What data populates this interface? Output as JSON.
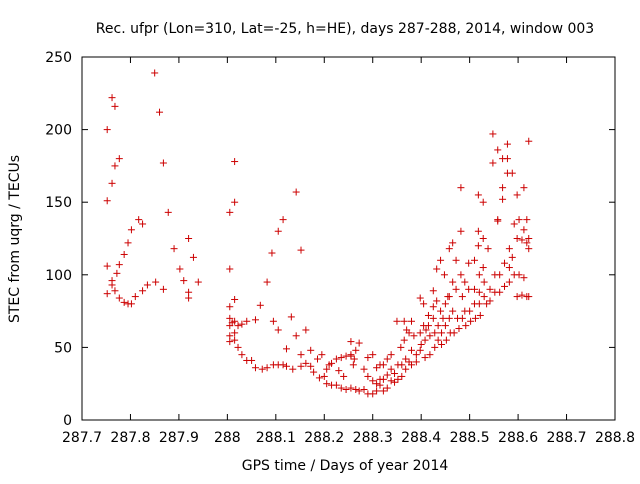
{
  "chart_data": {
    "type": "scatter",
    "title": "Rec. ufpr (Lon=310, Lat=-25, h=HE), days 287-288, 2014, window 003",
    "xlabel": "GPS time / Days of year 2014",
    "ylabel": "STEC from uqrg / TECUs",
    "xlim": [
      287.7,
      288.8
    ],
    "ylim": [
      0,
      250
    ],
    "xticks": [
      287.7,
      287.8,
      287.9,
      288.0,
      288.1,
      288.2,
      288.3,
      288.4,
      288.5,
      288.6,
      288.7,
      288.8
    ],
    "xtick_labels": [
      "287.7",
      "287.8",
      "287.9",
      "288",
      "288.1",
      "288.2",
      "288.3",
      "288.4",
      "288.5",
      "288.6",
      "288.7",
      "288.8"
    ],
    "yticks": [
      0,
      50,
      100,
      150,
      200,
      250
    ],
    "ytick_labels": [
      "0",
      "50",
      "100",
      "150",
      "200",
      "250"
    ],
    "grid": false,
    "legend": "none",
    "marker": "+",
    "color": "#cc0000",
    "series": [
      {
        "points": [
          [
            287.752,
            200
          ],
          [
            287.752,
            151
          ],
          [
            287.752,
            106
          ],
          [
            287.752,
            87
          ],
          [
            287.762,
            222
          ],
          [
            287.762,
            163
          ],
          [
            287.762,
            96
          ],
          [
            287.762,
            93
          ],
          [
            287.768,
            216
          ],
          [
            287.768,
            175
          ],
          [
            287.768,
            89
          ],
          [
            287.772,
            101
          ],
          [
            287.777,
            180
          ],
          [
            287.777,
            107
          ],
          [
            287.777,
            84
          ],
          [
            287.787,
            114
          ],
          [
            287.787,
            81
          ],
          [
            287.795,
            122
          ],
          [
            287.795,
            80
          ],
          [
            287.802,
            131
          ],
          [
            287.802,
            80
          ],
          [
            287.81,
            85
          ],
          [
            287.817,
            138
          ],
          [
            287.825,
            135
          ],
          [
            287.825,
            89
          ],
          [
            287.835,
            93
          ],
          [
            287.85,
            239
          ],
          [
            287.852,
            95
          ],
          [
            287.86,
            212
          ],
          [
            287.868,
            177
          ],
          [
            287.868,
            90
          ],
          [
            287.878,
            143
          ],
          [
            287.89,
            118
          ],
          [
            287.902,
            104
          ],
          [
            287.91,
            96
          ],
          [
            287.92,
            125
          ],
          [
            287.92,
            88
          ],
          [
            287.92,
            84
          ],
          [
            287.93,
            112
          ],
          [
            287.94,
            95
          ],
          [
            288.005,
            143
          ],
          [
            288.005,
            104
          ],
          [
            288.005,
            78
          ],
          [
            288.005,
            70
          ],
          [
            288.005,
            65
          ],
          [
            288.005,
            58
          ],
          [
            288.005,
            54
          ],
          [
            288.01,
            67
          ],
          [
            288.015,
            178
          ],
          [
            288.015,
            150
          ],
          [
            288.015,
            83
          ],
          [
            288.015,
            68
          ],
          [
            288.015,
            60
          ],
          [
            288.015,
            55
          ],
          [
            288.022,
            65
          ],
          [
            288.022,
            50
          ],
          [
            288.03,
            66
          ],
          [
            288.03,
            45
          ],
          [
            288.04,
            68
          ],
          [
            288.04,
            41
          ],
          [
            288.05,
            41
          ],
          [
            288.058,
            69
          ],
          [
            288.058,
            36
          ],
          [
            288.068,
            79
          ],
          [
            288.072,
            35
          ],
          [
            288.082,
            95
          ],
          [
            288.082,
            36
          ],
          [
            288.092,
            115
          ],
          [
            288.095,
            68
          ],
          [
            288.095,
            38
          ],
          [
            288.105,
            130
          ],
          [
            288.105,
            62
          ],
          [
            288.105,
            38
          ],
          [
            288.115,
            138
          ],
          [
            288.115,
            38
          ],
          [
            288.122,
            49
          ],
          [
            288.122,
            37
          ],
          [
            288.132,
            71
          ],
          [
            288.135,
            35
          ],
          [
            288.142,
            58
          ],
          [
            288.142,
            157
          ],
          [
            288.152,
            117
          ],
          [
            288.152,
            45
          ],
          [
            288.152,
            37
          ],
          [
            288.162,
            62
          ],
          [
            288.162,
            39
          ],
          [
            288.172,
            48
          ],
          [
            288.172,
            37
          ],
          [
            288.178,
            33
          ],
          [
            288.186,
            42
          ],
          [
            288.19,
            29
          ],
          [
            288.195,
            45
          ],
          [
            288.205,
            35
          ],
          [
            288.205,
            25
          ],
          [
            288.215,
            39
          ],
          [
            288.215,
            24
          ],
          [
            288.225,
            42
          ],
          [
            288.225,
            24
          ],
          [
            288.235,
            43
          ],
          [
            288.235,
            22
          ],
          [
            288.245,
            44
          ],
          [
            288.245,
            21
          ],
          [
            288.255,
            54
          ],
          [
            288.255,
            45
          ],
          [
            288.255,
            44
          ],
          [
            288.255,
            22
          ],
          [
            288.262,
            42
          ],
          [
            288.265,
            48
          ],
          [
            288.265,
            21
          ],
          [
            288.272,
            53
          ],
          [
            288.272,
            20
          ],
          [
            288.282,
            35
          ],
          [
            288.282,
            21
          ],
          [
            288.29,
            43
          ],
          [
            288.29,
            30
          ],
          [
            288.29,
            18
          ],
          [
            288.3,
            45
          ],
          [
            288.3,
            27
          ],
          [
            288.3,
            18
          ],
          [
            288.308,
            36
          ],
          [
            288.308,
            25
          ],
          [
            288.308,
            20
          ],
          [
            288.315,
            38
          ],
          [
            288.315,
            28
          ],
          [
            288.315,
            24
          ],
          [
            288.322,
            38
          ],
          [
            288.322,
            28
          ],
          [
            288.322,
            20
          ],
          [
            288.33,
            42
          ],
          [
            288.33,
            31
          ],
          [
            288.33,
            22
          ],
          [
            288.338,
            45
          ],
          [
            288.338,
            35
          ],
          [
            288.338,
            27
          ],
          [
            288.345,
            32
          ],
          [
            288.345,
            26
          ],
          [
            288.35,
            68
          ],
          [
            288.352,
            38
          ],
          [
            288.352,
            28
          ],
          [
            288.358,
            50
          ],
          [
            288.36,
            38
          ],
          [
            288.36,
            30
          ],
          [
            288.365,
            55
          ],
          [
            288.365,
            68
          ],
          [
            288.368,
            42
          ],
          [
            288.368,
            35
          ],
          [
            288.375,
            60
          ],
          [
            288.375,
            40
          ],
          [
            288.38,
            48
          ],
          [
            288.38,
            38
          ],
          [
            288.385,
            58
          ],
          [
            288.39,
            45
          ],
          [
            288.39,
            40
          ],
          [
            288.398,
            84
          ],
          [
            288.398,
            60
          ],
          [
            288.398,
            48
          ],
          [
            288.405,
            80
          ],
          [
            288.405,
            65
          ],
          [
            288.408,
            55
          ],
          [
            288.408,
            43
          ],
          [
            288.415,
            72
          ],
          [
            288.415,
            65
          ],
          [
            288.418,
            58
          ],
          [
            288.418,
            45
          ],
          [
            288.425,
            89
          ],
          [
            288.425,
            70
          ],
          [
            288.428,
            60
          ],
          [
            288.428,
            50
          ],
          [
            288.432,
            104
          ],
          [
            288.432,
            82
          ],
          [
            288.435,
            65
          ],
          [
            288.435,
            55
          ],
          [
            288.44,
            110
          ],
          [
            288.44,
            75
          ],
          [
            288.442,
            60
          ],
          [
            288.442,
            52
          ],
          [
            288.448,
            100
          ],
          [
            288.45,
            80
          ],
          [
            288.45,
            65
          ],
          [
            288.452,
            55
          ],
          [
            288.458,
            118
          ],
          [
            288.458,
            85
          ],
          [
            288.458,
            70
          ],
          [
            288.46,
            60
          ],
          [
            288.465,
            122
          ],
          [
            288.465,
            95
          ],
          [
            288.465,
            75
          ],
          [
            288.468,
            60
          ],
          [
            288.472,
            110
          ],
          [
            288.472,
            90
          ],
          [
            288.475,
            70
          ],
          [
            288.478,
            63
          ],
          [
            288.482,
            160
          ],
          [
            288.482,
            130
          ],
          [
            288.482,
            100
          ],
          [
            288.485,
            85
          ],
          [
            288.485,
            70
          ],
          [
            288.49,
            95
          ],
          [
            288.49,
            75
          ],
          [
            288.492,
            65
          ],
          [
            288.498,
            108
          ],
          [
            288.498,
            90
          ],
          [
            288.5,
            75
          ],
          [
            288.502,
            68
          ],
          [
            288.51,
            110
          ],
          [
            288.51,
            90
          ],
          [
            288.51,
            80
          ],
          [
            288.512,
            70
          ],
          [
            288.518,
            155
          ],
          [
            288.518,
            130
          ],
          [
            288.518,
            120
          ],
          [
            288.52,
            100
          ],
          [
            288.52,
            88
          ],
          [
            288.52,
            80
          ],
          [
            288.522,
            72
          ],
          [
            288.528,
            150
          ],
          [
            288.528,
            125
          ],
          [
            288.528,
            105
          ],
          [
            288.53,
            95
          ],
          [
            288.53,
            85
          ],
          [
            288.535,
            80
          ],
          [
            288.538,
            118
          ],
          [
            288.542,
            90
          ],
          [
            288.542,
            82
          ],
          [
            288.548,
            197
          ],
          [
            288.548,
            177
          ],
          [
            288.552,
            100
          ],
          [
            288.552,
            88
          ],
          [
            288.558,
            186
          ],
          [
            288.558,
            138
          ],
          [
            288.558,
            137
          ],
          [
            288.562,
            100
          ],
          [
            288.562,
            88
          ],
          [
            288.568,
            180
          ],
          [
            288.568,
            160
          ],
          [
            288.568,
            152
          ],
          [
            288.572,
            108
          ],
          [
            288.572,
            92
          ],
          [
            288.578,
            190
          ],
          [
            288.578,
            180
          ],
          [
            288.578,
            170
          ],
          [
            288.582,
            118
          ],
          [
            288.582,
            105
          ],
          [
            288.582,
            95
          ],
          [
            288.588,
            170
          ],
          [
            288.588,
            112
          ],
          [
            288.592,
            135
          ],
          [
            288.592,
            100
          ],
          [
            288.598,
            155
          ],
          [
            288.598,
            125
          ],
          [
            288.598,
            85
          ],
          [
            288.602,
            138
          ],
          [
            288.602,
            100
          ],
          [
            288.608,
            124
          ],
          [
            288.608,
            86
          ],
          [
            288.612,
            160
          ],
          [
            288.612,
            131
          ],
          [
            288.612,
            98
          ],
          [
            288.618,
            138
          ],
          [
            288.618,
            122
          ],
          [
            288.618,
            85
          ],
          [
            288.622,
            192
          ],
          [
            288.622,
            125
          ],
          [
            288.622,
            118
          ],
          [
            288.622,
            85
          ],
          [
            288.455,
            85
          ],
          [
            288.445,
            70
          ],
          [
            288.425,
            78
          ],
          [
            288.41,
            62
          ],
          [
            288.4,
            52
          ],
          [
            288.38,
            68
          ],
          [
            288.37,
            62
          ],
          [
            288.26,
            38
          ],
          [
            288.24,
            30
          ],
          [
            288.23,
            34
          ],
          [
            288.21,
            38
          ],
          [
            288.2,
            30
          ]
        ]
      }
    ]
  }
}
